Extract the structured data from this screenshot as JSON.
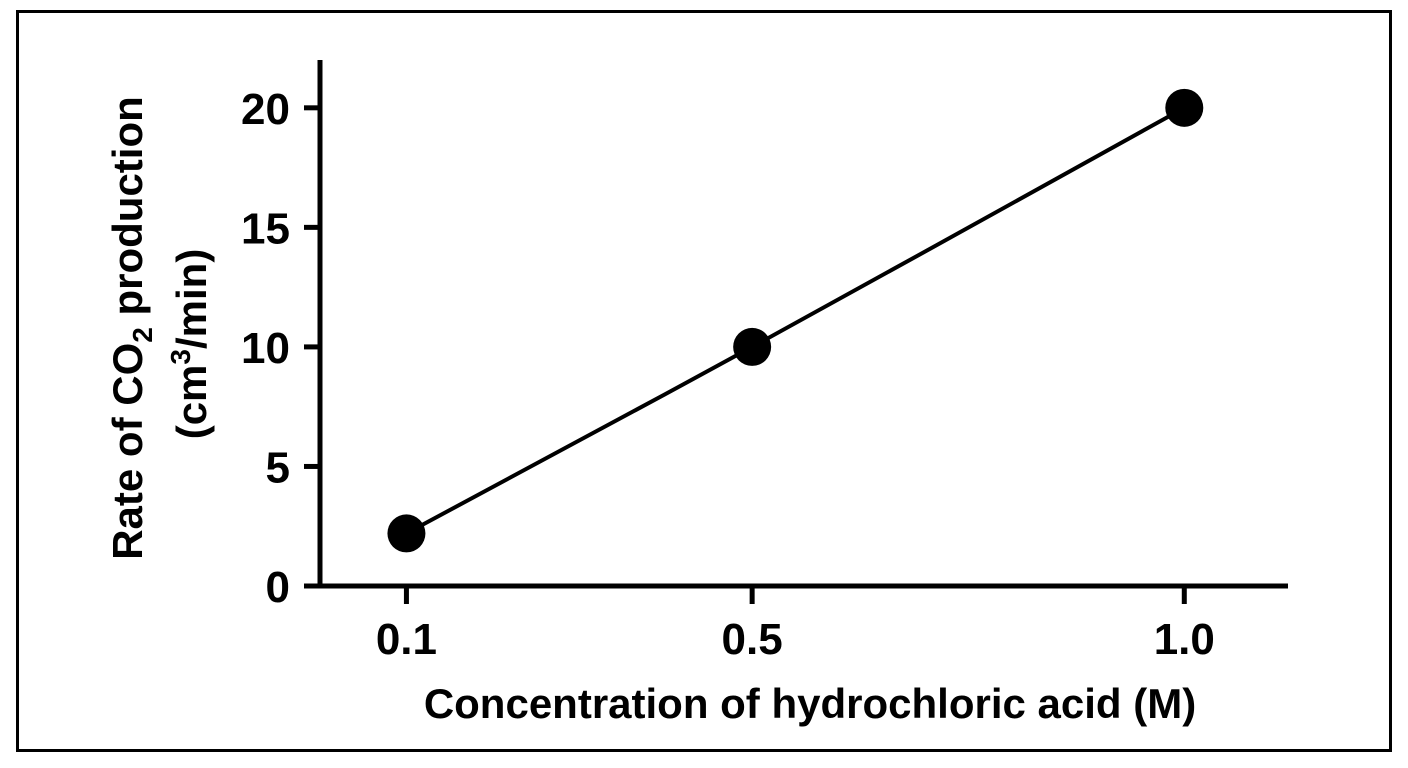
{
  "chart_data": {
    "type": "line",
    "title": "",
    "xlabel": "Concentration of hydrochloric acid (M)",
    "ylabel": {
      "line1_prefix": "Rate of CO",
      "line1_subscript": "2",
      "line1_suffix": " production",
      "line2_prefix": "(cm",
      "line2_superscript": "3",
      "line2_suffix": "/min)"
    },
    "x_categories": [
      "0.1",
      "0.5",
      "1.0"
    ],
    "x": [
      0.1,
      0.5,
      1.0
    ],
    "xlim": [
      0.0,
      1.12
    ],
    "ylim": [
      0,
      22
    ],
    "y_ticks": [
      0,
      5,
      10,
      15,
      20
    ],
    "y_tick_labels": [
      "0",
      "5",
      "10",
      "15",
      "20"
    ],
    "series": [
      {
        "values": [
          2.2,
          10,
          20
        ],
        "color": "#000000",
        "marker": "filled-circle",
        "smooth": true
      }
    ],
    "grid": false,
    "legend": "none"
  }
}
